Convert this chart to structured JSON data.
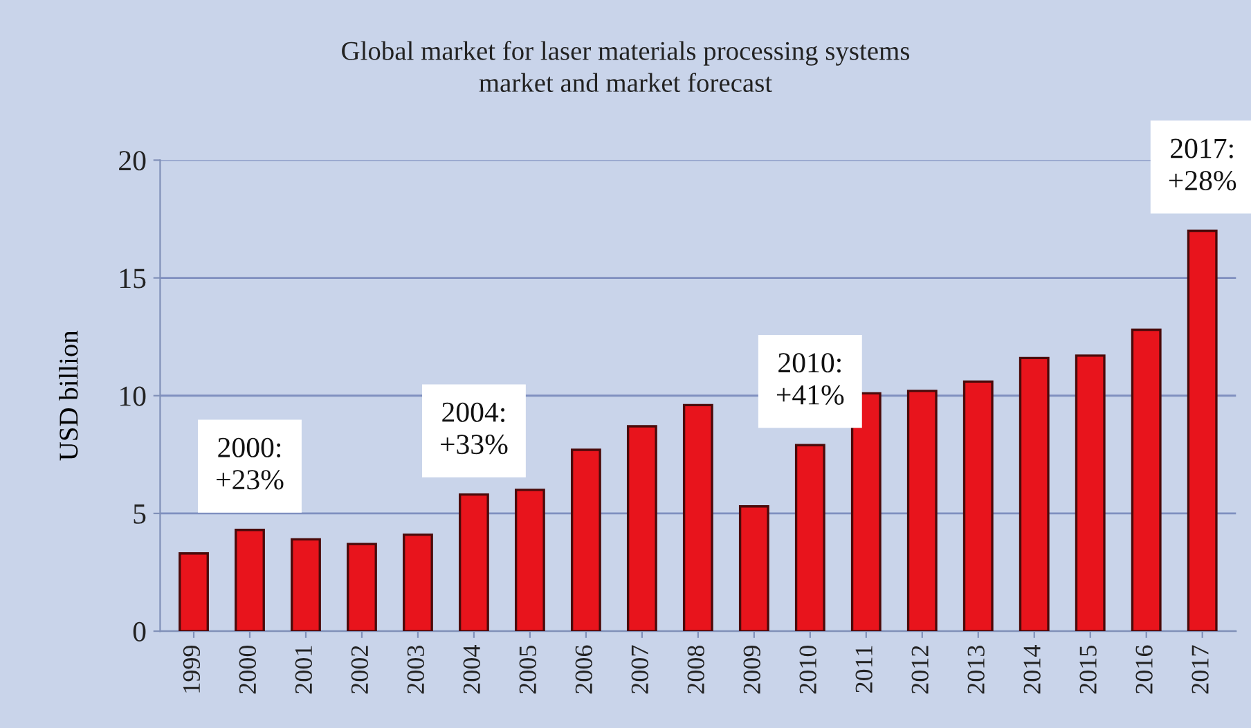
{
  "chart_data": {
    "type": "bar",
    "title": "Global market for laser materials processing systems\nmarket and market forecast",
    "ylabel": "USD billion",
    "categories": [
      "1999",
      "2000",
      "2001",
      "2002",
      "2003",
      "2004",
      "2005",
      "2006",
      "2007",
      "2008",
      "2009",
      "2010",
      "2011",
      "2012",
      "2013",
      "2014",
      "2015",
      "2016",
      "2017"
    ],
    "values": [
      3.3,
      4.3,
      3.9,
      3.7,
      4.1,
      5.8,
      6.0,
      7.7,
      8.7,
      9.6,
      5.3,
      7.9,
      10.1,
      10.2,
      10.6,
      11.6,
      11.7,
      12.8,
      17.0
    ],
    "color": "#e8141c",
    "ylim": [
      0,
      20
    ],
    "yticks": [
      0,
      5,
      10,
      15,
      20
    ],
    "grid": "y",
    "legend": false,
    "annotations": [
      {
        "text": "2000:\n+23%",
        "x": "2000",
        "y": 4.3
      },
      {
        "text": "2004:\n+33%",
        "x": "2004",
        "y": 5.8
      },
      {
        "text": "2010:\n+41%",
        "x": "2010",
        "y": 7.9
      },
      {
        "text": "2017:\n+28%",
        "x": "2017",
        "y": 17.0
      }
    ]
  }
}
